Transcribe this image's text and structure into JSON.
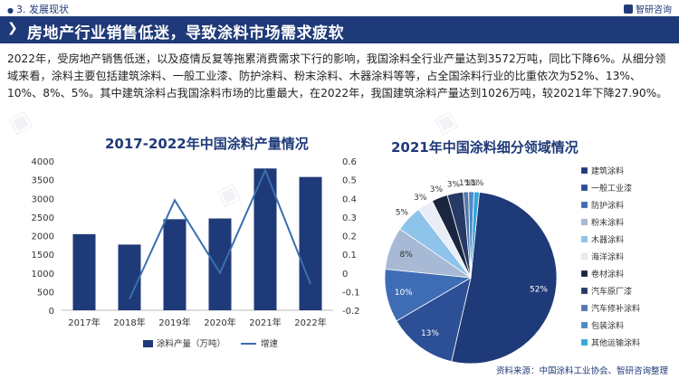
{
  "header": {
    "section": "3. 发展现状",
    "brand": "智研咨询"
  },
  "title": "房地产行业销售低迷，导致涂料市场需求疲软",
  "paragraph": "2022年，受房地产销售低迷，以及疫情反复等拖累消费需求下行的影响，我国涂料全行业产量达到3572万吨，同比下降6%。从细分领域来看，涂料主要包括建筑涂料、一般工业漆、防护涂料、粉末涂料、木器涂料等等，占全国涂料行业的比重依次为52%、13%、10%、8%、5%。其中建筑涂料占我国涂料市场的比重最大，在2022年，我国建筑涂料产量达到1026万吨，较2021年下降27.90%。",
  "footer": {
    "source": "资料来源：中国涂料工业协会、智研咨询整理"
  },
  "colors": {
    "primary": "#1f3a78",
    "bar": "#1f3a78",
    "line": "#3a6fb0"
  },
  "chart_data": [
    {
      "type": "bar",
      "title": "2017-2022年中国涂料产量情况",
      "categories": [
        "2017年",
        "2018年",
        "2019年",
        "2020年",
        "2021年",
        "2022年"
      ],
      "series": [
        {
          "name": "涂料产量（万吨）",
          "type": "bar",
          "axis": "left",
          "values": [
            2040,
            1760,
            2440,
            2460,
            3800,
            3572
          ]
        },
        {
          "name": "增速",
          "type": "line",
          "axis": "right",
          "values": [
            null,
            -0.14,
            0.39,
            0.0,
            0.55,
            -0.06
          ]
        }
      ],
      "ylim": [
        0,
        4000
      ],
      "yticks": [
        "0",
        "500",
        "1000",
        "1500",
        "2000",
        "2500",
        "3000",
        "3500",
        "4000"
      ],
      "y2lim": [
        -0.2,
        0.6
      ],
      "y2ticks": [
        "-0.2",
        "-0.1",
        "0",
        "0.1",
        "0.2",
        "0.3",
        "0.4",
        "0.5",
        "0.6"
      ],
      "legend_position": "bottom"
    },
    {
      "type": "pie",
      "title": "2021年中国涂料细分领域情况",
      "slices": [
        {
          "label": "建筑涂料",
          "value": 52,
          "text": "52%",
          "color": "#1f3a78"
        },
        {
          "label": "一般工业漆",
          "value": 13,
          "text": "13%",
          "color": "#2c4f96"
        },
        {
          "label": "防护涂料",
          "value": 10,
          "text": "10%",
          "color": "#3f6db5"
        },
        {
          "label": "粉末涂料",
          "value": 8,
          "text": "8%",
          "color": "#a7b9d4"
        },
        {
          "label": "木器涂料",
          "value": 5,
          "text": "5%",
          "color": "#8ec3ea"
        },
        {
          "label": "海洋涂料",
          "value": 3,
          "text": "3%",
          "color": "#e9eef6"
        },
        {
          "label": "卷材涂料",
          "value": 3,
          "text": "3%",
          "color": "#1a2540"
        },
        {
          "label": "汽车原厂漆",
          "value": 3,
          "text": "3%",
          "color": "#263a66"
        },
        {
          "label": "汽车修补涂料",
          "value": 1,
          "text": "1%",
          "color": "#5778ad"
        },
        {
          "label": "包装涂料",
          "value": 1,
          "text": "1%",
          "color": "#4a8ac7"
        },
        {
          "label": "其他运输涂料",
          "value": 1,
          "text": "1%",
          "color": "#35a6d8"
        }
      ],
      "legend_position": "right"
    }
  ]
}
